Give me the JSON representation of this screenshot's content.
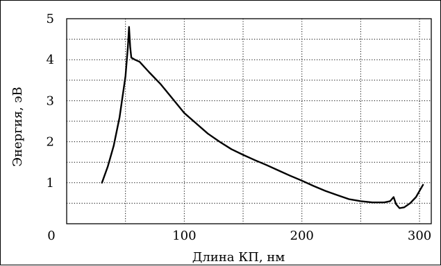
{
  "chart_data": {
    "type": "line",
    "title": "",
    "xlabel": "Длина КП, нм",
    "ylabel": "Энергия, эВ",
    "xlim": [
      0,
      310
    ],
    "ylim": [
      0,
      5
    ],
    "x_major_ticks": [
      {
        "value": 0,
        "label": "0"
      },
      {
        "value": 100,
        "label": "100"
      },
      {
        "value": 200,
        "label": "200"
      },
      {
        "value": 300,
        "label": "300"
      }
    ],
    "y_major_ticks": [
      {
        "value": 0,
        "label": "0"
      },
      {
        "value": 1,
        "label": "1"
      },
      {
        "value": 2,
        "label": "2"
      },
      {
        "value": 3,
        "label": "3"
      },
      {
        "value": 4,
        "label": "4"
      },
      {
        "value": 5,
        "label": "5"
      }
    ],
    "x_grid": [
      50,
      100,
      150,
      200,
      250,
      300
    ],
    "y_grid": [
      0.5,
      1,
      1.5,
      2,
      2.5,
      3,
      3.5,
      4,
      4.5
    ],
    "grid": true,
    "grid_style": "dotted",
    "series": [
      {
        "name": "",
        "color": "#000000",
        "points": [
          [
            30,
            1.0
          ],
          [
            35,
            1.4
          ],
          [
            40,
            1.9
          ],
          [
            45,
            2.6
          ],
          [
            50,
            3.6
          ],
          [
            52,
            4.3
          ],
          [
            53,
            4.8
          ],
          [
            54,
            4.3
          ],
          [
            55,
            4.05
          ],
          [
            58,
            4.0
          ],
          [
            62,
            3.95
          ],
          [
            70,
            3.7
          ],
          [
            80,
            3.4
          ],
          [
            90,
            3.05
          ],
          [
            100,
            2.7
          ],
          [
            110,
            2.45
          ],
          [
            120,
            2.2
          ],
          [
            130,
            2.0
          ],
          [
            140,
            1.82
          ],
          [
            150,
            1.68
          ],
          [
            160,
            1.55
          ],
          [
            170,
            1.43
          ],
          [
            180,
            1.3
          ],
          [
            190,
            1.17
          ],
          [
            200,
            1.05
          ],
          [
            210,
            0.92
          ],
          [
            220,
            0.8
          ],
          [
            230,
            0.7
          ],
          [
            240,
            0.6
          ],
          [
            250,
            0.55
          ],
          [
            260,
            0.52
          ],
          [
            270,
            0.52
          ],
          [
            275,
            0.55
          ],
          [
            278,
            0.65
          ],
          [
            280,
            0.48
          ],
          [
            283,
            0.38
          ],
          [
            287,
            0.4
          ],
          [
            292,
            0.5
          ],
          [
            297,
            0.65
          ],
          [
            303,
            0.95
          ]
        ]
      }
    ]
  }
}
